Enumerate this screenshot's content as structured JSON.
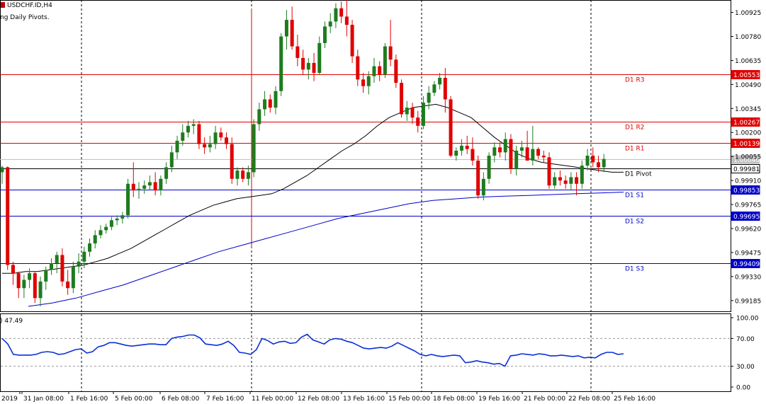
{
  "header": {
    "symbol_label": "USDCHF.ID,H4",
    "indicator_label": "ng Daily Pivots."
  },
  "colors": {
    "bull_candle": "#1e7b1e",
    "bear_candle": "#e00000",
    "resistance_line": "#e00000",
    "support_line": "#0000c8",
    "pivot_line": "#000000",
    "ma_fast": "#000000",
    "ma_slow": "#0000c8",
    "rsi_line": "#0a2fd6",
    "grid": "#000000",
    "background": "#ffffff"
  },
  "price_axis": {
    "ticks": [
      "1.00925",
      "1.00780",
      "1.00635",
      "1.00490",
      "1.00345",
      "1.00200",
      "1.00055",
      "0.99910",
      "0.99765",
      "0.99620",
      "0.99475",
      "0.99330",
      "0.99185"
    ],
    "current_price": "1.00040",
    "current_price_highlighted": "0.99981"
  },
  "pivot_levels": [
    {
      "name": "D1 R3",
      "value": "1.00553",
      "type": "resistance"
    },
    {
      "name": "D1 R2",
      "value": "1.00267",
      "type": "resistance"
    },
    {
      "name": "D1 R1",
      "value": "1.00139",
      "type": "resistance"
    },
    {
      "name": "D1 Pivot",
      "value": "0.99981",
      "type": "pivot"
    },
    {
      "name": "D1 S1",
      "value": "0.99853",
      "type": "support"
    },
    {
      "name": "D1 S2",
      "value": "0.99695",
      "type": "support"
    },
    {
      "name": "D1 S3",
      "value": "0.99409",
      "type": "support"
    }
  ],
  "rsi": {
    "label_value": ") 47.49",
    "ticks": [
      "100.00",
      "70.00",
      "30.00",
      "0.00"
    ],
    "values": [
      70,
      62,
      47,
      46,
      46,
      46,
      47,
      50,
      51,
      50,
      47,
      48,
      51,
      54,
      55,
      49,
      51,
      58,
      60,
      64,
      64,
      62,
      60,
      59,
      60,
      61,
      62,
      62,
      61,
      61,
      70,
      72,
      73,
      75,
      75,
      71,
      62,
      61,
      60,
      62,
      66,
      60,
      50,
      49,
      47,
      54,
      70,
      67,
      62,
      65,
      66,
      63,
      64,
      72,
      76,
      68,
      65,
      62,
      68,
      70,
      69,
      66,
      64,
      60,
      56,
      55,
      56,
      57,
      56,
      59,
      64,
      60,
      56,
      52,
      47,
      45,
      47,
      45,
      44,
      45,
      46,
      45,
      35,
      36,
      38,
      36,
      35,
      33,
      34,
      30,
      45,
      46,
      48,
      47,
      46,
      48,
      47,
      45,
      45,
      46,
      45,
      44,
      45,
      42,
      43,
      42,
      47,
      50,
      50,
      47,
      48
    ]
  },
  "time_axis": {
    "labels": [
      "2019",
      "31 Jan 08:00",
      "1 Feb 16:00",
      "5 Feb 00:00",
      "6 Feb 08:00",
      "7 Feb 16:00",
      "11 Feb 00:00",
      "12 Feb 08:00",
      "13 Feb 16:00",
      "15 Feb 00:00",
      "18 Feb 08:00",
      "19 Feb 16:00",
      "21 Feb 00:00",
      "22 Feb 08:00",
      "25 Feb 16:00"
    ]
  },
  "candles": [
    [
      0.9996,
      1.0,
      0.9989,
      0.9999
    ],
    [
      0.9999,
      0.99995,
      0.9937,
      0.994
    ],
    [
      0.994,
      0.9942,
      0.9928,
      0.9935
    ],
    [
      0.9935,
      0.9936,
      0.992,
      0.9926
    ],
    [
      0.9926,
      0.9934,
      0.992,
      0.9931
    ],
    [
      0.9931,
      0.9938,
      0.9926,
      0.9935
    ],
    [
      0.9935,
      0.9936,
      0.9917,
      0.992
    ],
    [
      0.992,
      0.9933,
      0.9915,
      0.993
    ],
    [
      0.993,
      0.9939,
      0.9925,
      0.9937
    ],
    [
      0.9937,
      0.9944,
      0.9934,
      0.9941
    ],
    [
      0.9941,
      0.9948,
      0.9935,
      0.9946
    ],
    [
      0.9946,
      0.995,
      0.9927,
      0.993
    ],
    [
      0.993,
      0.9937,
      0.9922,
      0.9926
    ],
    [
      0.9926,
      0.9942,
      0.9923,
      0.9939
    ],
    [
      0.9939,
      0.9947,
      0.9935,
      0.9942
    ],
    [
      0.9942,
      0.9951,
      0.9938,
      0.9948
    ],
    [
      0.9948,
      0.9956,
      0.9945,
      0.9953
    ],
    [
      0.9953,
      0.9961,
      0.995,
      0.9958
    ],
    [
      0.9958,
      0.9964,
      0.9956,
      0.9961
    ],
    [
      0.9961,
      0.9965,
      0.9959,
      0.9963
    ],
    [
      0.9963,
      0.9969,
      0.9961,
      0.9967
    ],
    [
      0.9967,
      0.997,
      0.9964,
      0.9968
    ],
    [
      0.9968,
      0.9972,
      0.9965,
      0.997
    ],
    [
      0.997,
      0.9992,
      0.9968,
      0.9989
    ],
    [
      0.9989,
      1.0002,
      0.9981,
      0.9985
    ],
    [
      0.9985,
      0.999,
      0.998,
      0.9986
    ],
    [
      0.9986,
      0.9991,
      0.9983,
      0.9988
    ],
    [
      0.9988,
      0.9994,
      0.9985,
      0.999
    ],
    [
      0.999,
      0.9996,
      0.9982,
      0.9985
    ],
    [
      0.9985,
      0.9994,
      0.9982,
      0.9992
    ],
    [
      0.9992,
      1.0002,
      0.9989,
      0.9999
    ],
    [
      0.9999,
      1.0012,
      0.9996,
      1.0008
    ],
    [
      1.0008,
      1.0018,
      1.0004,
      1.0015
    ],
    [
      1.0015,
      1.0025,
      1.0012,
      1.002
    ],
    [
      1.002,
      1.0027,
      1.0017,
      1.0024
    ],
    [
      1.0024,
      1.0028,
      1.0019,
      1.0025
    ],
    [
      1.0025,
      1.0027,
      1.001,
      1.0013
    ],
    [
      1.0013,
      1.0017,
      1.0007,
      1.0011
    ],
    [
      1.0011,
      1.0018,
      1.0008,
      1.0013
    ],
    [
      1.0013,
      1.0024,
      1.001,
      1.002
    ],
    [
      1.002,
      1.0023,
      1.0015,
      1.0017
    ],
    [
      1.0017,
      1.002,
      1.001,
      1.0013
    ],
    [
      1.0013,
      1.0017,
      0.9989,
      0.9992
    ],
    [
      0.9992,
      0.9999,
      0.9988,
      0.9997
    ],
    [
      0.9997,
      0.9999,
      0.999,
      0.9992
    ],
    [
      0.9992,
      1.0,
      0.9988,
      0.9996
    ],
    [
      0.9996,
      1.0028,
      0.9993,
      1.0025
    ],
    [
      1.0025,
      1.0038,
      1.0021,
      1.0034
    ],
    [
      1.0034,
      1.0045,
      1.003,
      1.004
    ],
    [
      1.004,
      1.0043,
      1.0032,
      1.0035
    ],
    [
      1.0035,
      1.0048,
      1.0031,
      1.0045
    ],
    [
      1.0045,
      1.008,
      1.0042,
      1.0078
    ],
    [
      1.0078,
      1.0094,
      1.007,
      1.0088
    ],
    [
      1.0088,
      1.0096,
      1.007,
      1.0072
    ],
    [
      1.0072,
      1.0079,
      1.006,
      1.0065
    ],
    [
      1.0065,
      1.007,
      1.0055,
      1.0058
    ],
    [
      1.0058,
      1.0065,
      1.0052,
      1.0062
    ],
    [
      1.0062,
      1.0068,
      1.0051,
      1.0056
    ],
    [
      1.0056,
      1.0078,
      1.0055,
      1.0074
    ],
    [
      1.0074,
      1.0087,
      1.0071,
      1.0084
    ],
    [
      1.0084,
      1.0092,
      1.008,
      1.0087
    ],
    [
      1.0087,
      1.0098,
      1.0083,
      1.0095
    ],
    [
      1.0095,
      1.0099,
      1.0086,
      1.009
    ],
    [
      1.009,
      1.01,
      1.0078,
      1.0085
    ],
    [
      1.0085,
      1.0088,
      1.0062,
      1.0066
    ],
    [
      1.0066,
      1.007,
      1.0048,
      1.0052
    ],
    [
      1.0052,
      1.0056,
      1.0044,
      1.0048
    ],
    [
      1.0048,
      1.0057,
      1.0043,
      1.0054
    ],
    [
      1.0054,
      1.0065,
      1.005,
      1.006
    ],
    [
      1.006,
      1.0063,
      1.0051,
      1.0055
    ],
    [
      1.0055,
      1.0074,
      1.0053,
      1.0072
    ],
    [
      1.0072,
      1.0088,
      1.006,
      1.0064
    ],
    [
      1.0064,
      1.0067,
      1.0047,
      1.005
    ],
    [
      1.005,
      1.0052,
      1.0029,
      1.0031
    ],
    [
      1.0031,
      1.0039,
      1.0027,
      1.0035
    ],
    [
      1.0035,
      1.0038,
      1.0025,
      1.0029
    ],
    [
      1.0029,
      1.0033,
      1.002,
      1.0024
    ],
    [
      1.0024,
      1.0042,
      1.0022,
      1.0038
    ],
    [
      1.0038,
      1.0048,
      1.0034,
      1.0044
    ],
    [
      1.0044,
      1.0051,
      1.0042,
      1.0049
    ],
    [
      1.0049,
      1.0056,
      1.0046,
      1.0053
    ],
    [
      1.0053,
      1.0059,
      1.0032,
      1.004
    ],
    [
      1.004,
      1.0042,
      1.0005,
      1.0006
    ],
    [
      1.0006,
      1.0011,
      1.0003,
      1.0009
    ],
    [
      1.0009,
      1.0016,
      1.0006,
      1.0012
    ],
    [
      1.0012,
      1.0018,
      1.0007,
      1.001
    ],
    [
      1.001,
      1.0017,
      1.0,
      1.0003
    ],
    [
      1.0003,
      1.0006,
      0.998,
      0.9982
    ],
    [
      0.9982,
      0.9996,
      0.9979,
      0.9992
    ],
    [
      0.9992,
      1.0008,
      0.9989,
      1.0006
    ],
    [
      1.0006,
      1.0014,
      1.0002,
      1.0011
    ],
    [
      1.0011,
      1.0014,
      1.0005,
      1.0008
    ],
    [
      1.0008,
      1.002,
      1.0003,
      1.0016
    ],
    [
      1.0016,
      1.0019,
      0.9995,
      0.9998
    ],
    [
      0.9998,
      1.0012,
      0.9994,
      1.0009
    ],
    [
      1.0009,
      1.0015,
      1.0005,
      1.0011
    ],
    [
      1.0011,
      1.0021,
      1.0004,
      1.0003
    ],
    [
      1.0003,
      1.0024,
      1.0,
      1.001
    ],
    [
      1.001,
      1.0011,
      1.0004,
      1.0006
    ],
    [
      1.0006,
      1.0009,
      1.0002,
      1.0005
    ],
    [
      1.0005,
      1.0008,
      0.9986,
      0.9988
    ],
    [
      0.9988,
      0.9996,
      0.9986,
      0.9993
    ],
    [
      0.9993,
      0.9997,
      0.9988,
      0.9991
    ],
    [
      0.9991,
      0.9994,
      0.9986,
      0.9989
    ],
    [
      0.9989,
      0.9996,
      0.9985,
      0.9993
    ],
    [
      0.9993,
      0.9996,
      0.9982,
      0.9989
    ],
    [
      0.9989,
      1.0003,
      0.9986,
      1.0
    ],
    [
      1.0,
      1.001,
      0.9997,
      1.0006
    ],
    [
      1.0006,
      1.0011,
      0.9999,
      1.0002
    ],
    [
      1.0002,
      1.0006,
      0.9996,
      0.9999
    ],
    [
      0.9999,
      1.0007,
      0.9996,
      1.0004
    ]
  ],
  "ma_fast": [
    0.9935,
    0.9935,
    0.9936,
    0.9936,
    0.9937,
    0.9938,
    0.9939,
    0.994,
    0.9942,
    0.9944,
    0.9947,
    0.995,
    0.9954,
    0.9958,
    0.9962,
    0.9966,
    0.997,
    0.9973,
    0.9976,
    0.9978,
    0.998,
    0.9981,
    0.9982,
    0.9983,
    0.9986,
    0.999,
    0.9994,
    0.9999,
    1.0004,
    1.0009,
    1.0013,
    1.0018,
    1.0024,
    1.0029,
    1.0032,
    1.0035,
    1.0036,
    1.0037,
    1.0035,
    1.0032,
    1.0029,
    1.0023,
    1.0017,
    1.0012,
    1.0007,
    1.0004,
    1.0002,
    1.0001,
    1.0,
    0.9999,
    0.9998,
    0.9997,
    0.9996,
    0.9996
  ],
  "ma_slow": [
    0.9915,
    0.9917,
    0.992,
    0.9924,
    0.9928,
    0.9933,
    0.9938,
    0.9943,
    0.9948,
    0.9952,
    0.9956,
    0.996,
    0.9964,
    0.9968,
    0.9971,
    0.9974,
    0.9977,
    0.9979,
    0.998,
    0.9981,
    0.99815,
    0.9982,
    0.99825,
    0.9983,
    0.99835,
    0.9984
  ]
}
